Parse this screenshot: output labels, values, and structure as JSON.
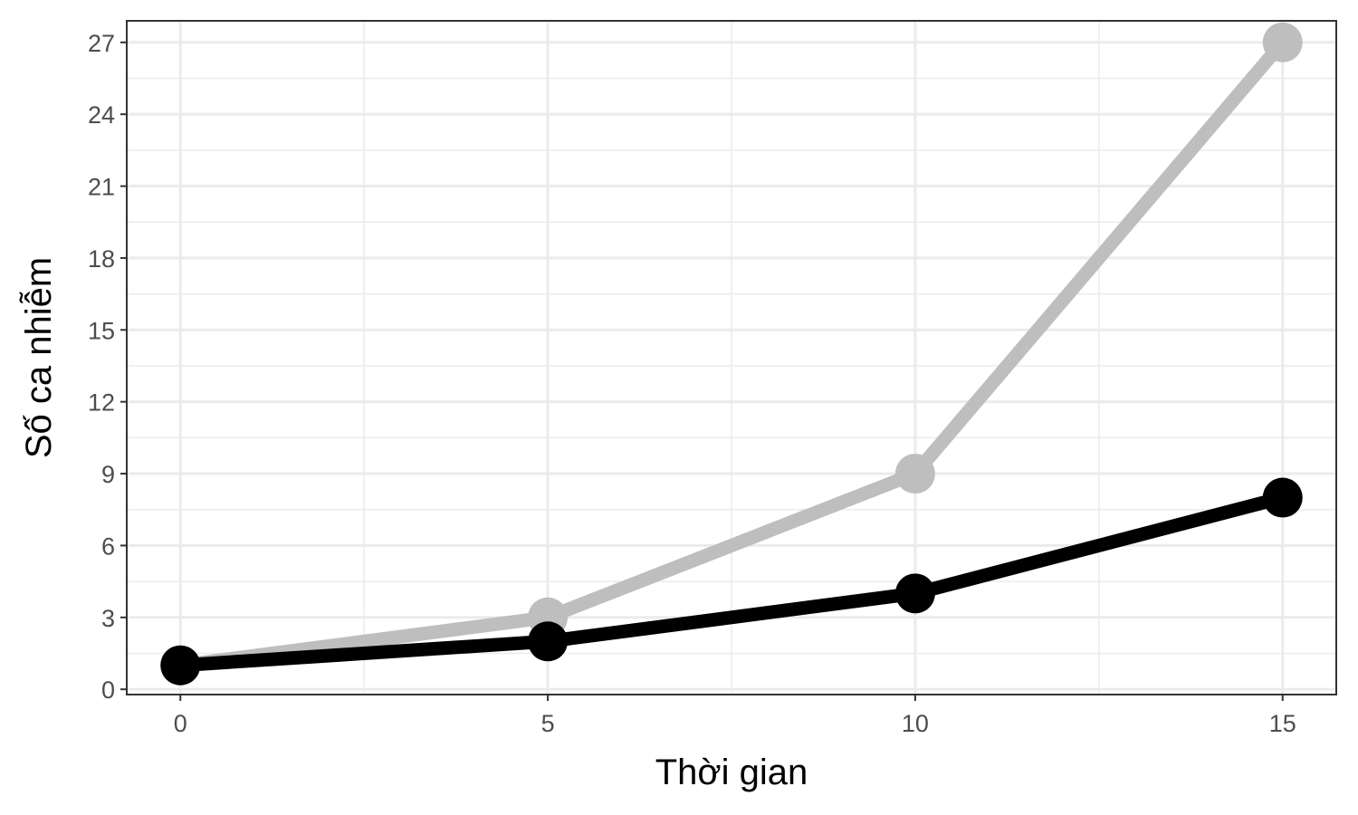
{
  "chart_data": {
    "type": "line",
    "title": "",
    "xlabel": "Thời gian",
    "ylabel": "Số ca nhiễm",
    "x": [
      0,
      5,
      10,
      15
    ],
    "xlim": [
      -0.73,
      15.73
    ],
    "ylim": [
      -0.22,
      27.9
    ],
    "x_ticks": [
      0,
      5,
      10,
      15
    ],
    "x_tick_labels": [
      "0",
      "5",
      "10",
      "15"
    ],
    "y_ticks": [
      0,
      3,
      6,
      9,
      12,
      15,
      18,
      21,
      24,
      27
    ],
    "y_tick_labels": [
      "0",
      "3",
      "6",
      "9",
      "12",
      "15",
      "18",
      "21",
      "24",
      "27"
    ],
    "grid": true,
    "legend": "none",
    "series": [
      {
        "values": [
          1,
          3,
          9,
          27
        ],
        "color": "#bebebe"
      },
      {
        "values": [
          1,
          2,
          4,
          8
        ],
        "color": "#000000"
      }
    ]
  }
}
